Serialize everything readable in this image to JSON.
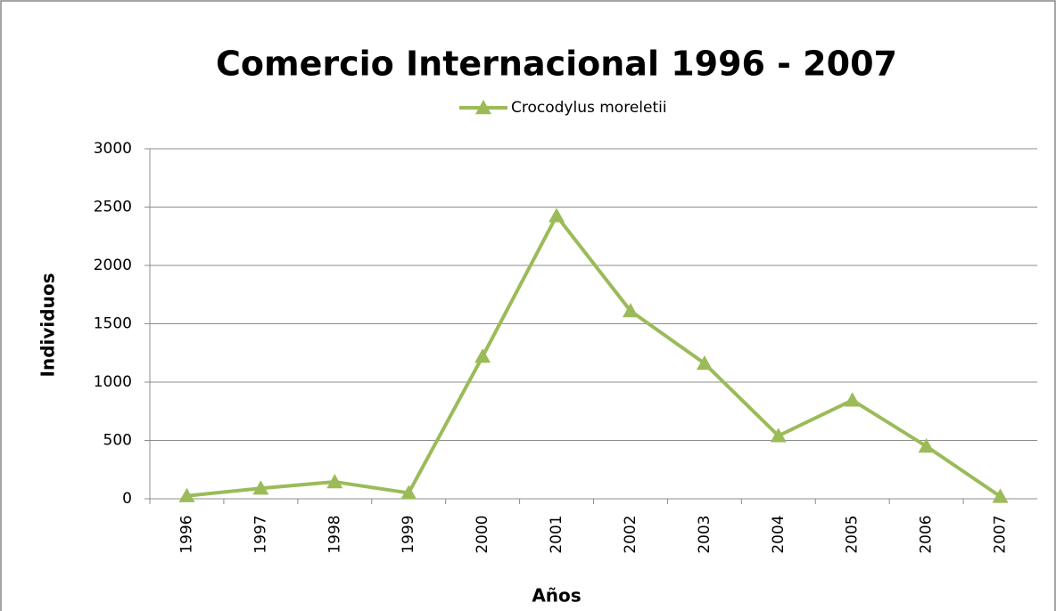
{
  "chart_data": {
    "type": "line",
    "title": "Comercio Internacional 1996 - 2007",
    "x_label": "Años",
    "y_label": "Individuos",
    "categories": [
      "1996",
      "1997",
      "1998",
      "1999",
      "2000",
      "2001",
      "2002",
      "2003",
      "2004",
      "2005",
      "2006",
      "2007"
    ],
    "series": [
      {
        "name": "Crocodylus moreletii",
        "color": "#9bbb59",
        "values": [
          25,
          90,
          145,
          50,
          1220,
          2425,
          1610,
          1160,
          540,
          845,
          450,
          20
        ]
      }
    ],
    "ylim": [
      0,
      3000
    ],
    "yticks": [
      0,
      500,
      1000,
      1500,
      2000,
      2500,
      3000
    ],
    "grid": true,
    "legend": "top"
  }
}
